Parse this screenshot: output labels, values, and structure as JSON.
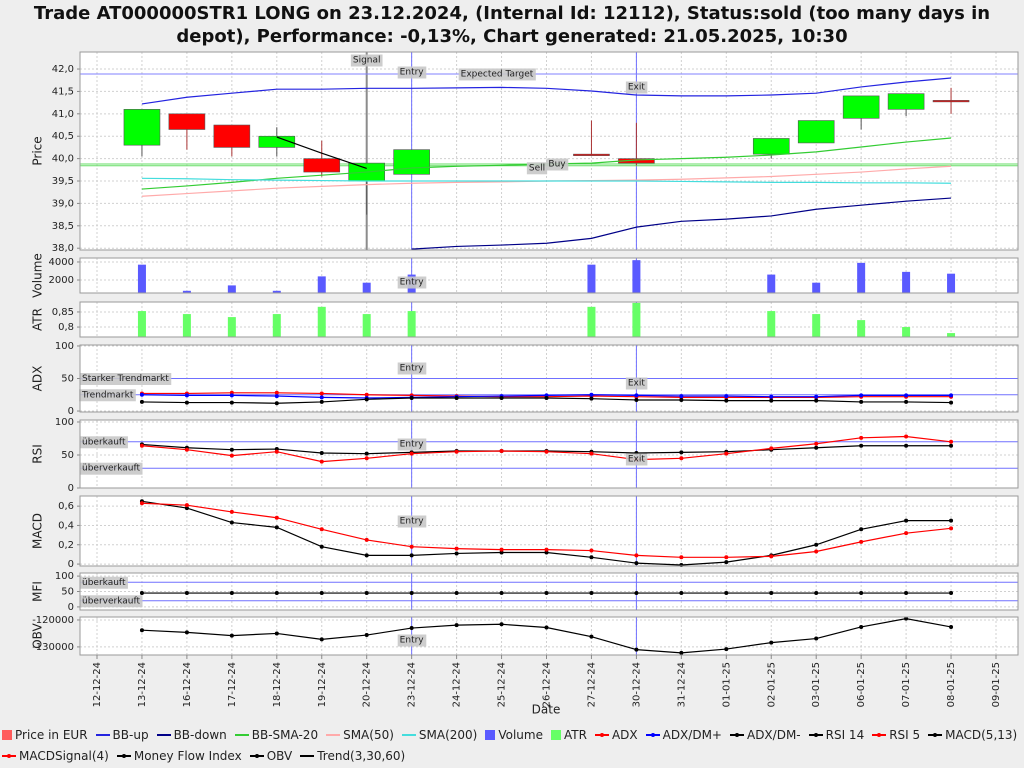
{
  "chart_data": {
    "type": "multi-panel",
    "title": "Trade AT000000STR1 LONG on 23.12.2024, (Internal Id: 12112), Status:sold (too many days in depot), Performance: -0,13%, Chart generated: 21.05.2025, 10:30",
    "x_label": "Date",
    "categories": [
      "12-12-24",
      "13-12-24",
      "16-12-24",
      "17-12-24",
      "18-12-24",
      "19-12-24",
      "20-12-24",
      "23-12-24",
      "24-12-24",
      "25-12-24",
      "26-12-24",
      "27-12-24",
      "30-12-24",
      "31-12-24",
      "01-01-25",
      "02-01-25",
      "03-01-25",
      "06-01-25",
      "07-01-25",
      "08-01-25",
      "09-01-25"
    ],
    "grid": true,
    "vlines": [
      {
        "label": "Signal",
        "category": "20-12-24",
        "color": "#8c8c8c"
      },
      {
        "label": "Entry",
        "category": "23-12-24",
        "color": "#7070ff"
      },
      {
        "label": "Exit",
        "category": "30-12-24",
        "color": "#7070ff"
      }
    ],
    "panels": [
      {
        "type": "candlestick",
        "y_label": "Price",
        "ylim": [
          37.96,
          42.38
        ],
        "yticks": [
          {
            "value": 38,
            "label": "38,0"
          },
          {
            "value": 38.5,
            "label": "38,5"
          },
          {
            "value": 39,
            "label": "39,0"
          },
          {
            "value": 39.5,
            "label": "39,5"
          },
          {
            "value": 40,
            "label": "40,0"
          },
          {
            "value": 40.5,
            "label": "40,5"
          },
          {
            "value": 41,
            "label": "41,0"
          },
          {
            "value": 41.5,
            "label": "41,5"
          },
          {
            "value": 42,
            "label": "42,0"
          }
        ],
        "hlines": [
          {
            "label": "Expected Target",
            "value": 41.89,
            "color": "#8080ff"
          },
          {
            "label": "Sell",
            "value": 39.84,
            "color": "#66dd66"
          },
          {
            "label": "Buy",
            "value": 39.88,
            "color": "#66dd66"
          }
        ],
        "series": [
          {
            "type": "candlestick",
            "name": "Price in EUR",
            "color": "#ff5c5c",
            "up_color": "#00ff00",
            "down_color": "#ff0000",
            "open": [
              null,
              40.3,
              41.0,
              40.75,
              40.25,
              40.0,
              39.5,
              39.65,
              null,
              null,
              null,
              40.1,
              40.0,
              null,
              null,
              40.1,
              40.35,
              40.9,
              41.1,
              41.3,
              null
            ],
            "high": [
              null,
              41.1,
              41.0,
              40.75,
              40.7,
              40.4,
              39.9,
              40.2,
              null,
              null,
              null,
              40.85,
              40.8,
              null,
              null,
              40.45,
              40.85,
              41.4,
              41.45,
              41.58,
              null
            ],
            "low": [
              null,
              40.05,
              40.2,
              40.05,
              40.05,
              39.6,
              38.75,
              39.65,
              null,
              null,
              null,
              40.1,
              39.85,
              null,
              null,
              40.0,
              40.35,
              40.65,
              40.95,
              41.0,
              null
            ],
            "close": [
              null,
              41.1,
              40.65,
              40.25,
              40.5,
              39.7,
              39.9,
              40.2,
              null,
              null,
              null,
              40.1,
              39.9,
              null,
              null,
              40.45,
              40.85,
              41.4,
              41.45,
              41.27,
              null
            ]
          },
          {
            "type": "line",
            "name": "BB-up",
            "color": "#2424e0",
            "values": [
              null,
              41.22,
              41.37,
              41.46,
              41.55,
              41.55,
              41.57,
              41.57,
              41.58,
              41.59,
              41.57,
              41.51,
              41.42,
              41.4,
              41.4,
              41.42,
              41.46,
              41.6,
              41.71,
              41.8,
              null
            ]
          },
          {
            "type": "line",
            "name": "BB-down",
            "color": "#000088",
            "values": [
              null,
              null,
              null,
              null,
              null,
              null,
              null,
              37.98,
              38.04,
              38.07,
              38.11,
              38.22,
              38.47,
              38.6,
              38.65,
              38.72,
              38.87,
              38.96,
              39.05,
              39.12,
              null
            ]
          },
          {
            "type": "line",
            "name": "BB-SMA-20",
            "color": "#33cc33",
            "values": [
              null,
              39.32,
              39.39,
              39.47,
              39.56,
              39.63,
              39.7,
              39.79,
              39.83,
              39.85,
              39.88,
              39.9,
              39.97,
              40.0,
              40.03,
              40.08,
              40.15,
              40.26,
              40.37,
              40.46,
              null
            ]
          },
          {
            "type": "line",
            "name": "SMA(50)",
            "color": "#ffaaaa",
            "values": [
              null,
              39.16,
              39.22,
              39.28,
              39.34,
              39.38,
              39.42,
              39.45,
              39.47,
              39.48,
              39.5,
              39.51,
              39.52,
              39.54,
              39.57,
              39.6,
              39.65,
              39.7,
              39.77,
              39.83,
              null
            ]
          },
          {
            "type": "line",
            "name": "SMA(200)",
            "color": "#44dddd",
            "values": [
              null,
              39.56,
              39.55,
              39.53,
              39.52,
              39.51,
              39.5,
              39.5,
              39.5,
              39.5,
              39.5,
              39.5,
              39.5,
              39.49,
              39.48,
              39.47,
              39.47,
              39.46,
              39.46,
              39.45,
              null
            ]
          }
        ],
        "trend": {
          "type": "line",
          "name": "Trend(3,30,60)",
          "color": "#000000",
          "values": [
            null,
            null,
            null,
            null,
            40.48,
            40.12,
            39.78,
            null,
            null,
            null,
            null,
            null,
            null,
            null,
            null,
            null,
            null,
            null,
            null,
            null,
            null
          ]
        }
      },
      {
        "type": "bar",
        "y_label": "Volume",
        "ylim": [
          556,
          4440
        ],
        "yticks": [
          2000,
          4000
        ],
        "series": [
          {
            "type": "bar",
            "name": "Volume",
            "color": "#5a5aff",
            "values": [
              null,
              3700,
              800,
              1400,
              800,
              2400,
              1700,
              2600,
              null,
              null,
              null,
              3700,
              4200,
              null,
              null,
              2600,
              1700,
              3900,
              2900,
              2700,
              null
            ]
          }
        ]
      },
      {
        "type": "bar",
        "y_label": "ATR",
        "ylim": [
          0.767,
          0.883
        ],
        "yticks": [
          {
            "value": 0.8,
            "label": "0,8"
          },
          {
            "value": 0.85,
            "label": "0,85"
          }
        ],
        "series": [
          {
            "type": "bar",
            "name": "ATR",
            "color": "#66ff66",
            "values": [
              null,
              0.853,
              0.843,
              0.833,
              0.843,
              0.867,
              0.843,
              0.853,
              null,
              null,
              null,
              0.867,
              0.88,
              null,
              null,
              0.853,
              0.843,
              0.823,
              0.8,
              0.78,
              null
            ]
          }
        ]
      },
      {
        "type": "line",
        "y_label": "ADX",
        "ylim": [
          -1.5,
          101.5
        ],
        "yticks": [
          0,
          50,
          100
        ],
        "hlines": [
          {
            "label": "Starker Trendmarkt",
            "value": 50,
            "color": "#7070ff"
          },
          {
            "label": "Trendmarkt",
            "value": 25,
            "color": "#7070ff"
          }
        ],
        "series": [
          {
            "type": "line",
            "name": "ADX",
            "color": "#ff0000",
            "markers": true,
            "values": [
              null,
              27,
              27,
              28,
              28,
              27,
              25,
              24,
              23,
              22,
              22,
              23,
              22,
              21,
              21,
              21,
              21,
              22,
              22,
              22,
              null
            ]
          },
          {
            "type": "line",
            "name": "ADX/DM+",
            "color": "#0000ff",
            "markers": true,
            "values": [
              null,
              25,
              24,
              24,
              23,
              21,
              20,
              21,
              22,
              23,
              24,
              25,
              24,
              23,
              23,
              22,
              22,
              24,
              24,
              24,
              null
            ]
          },
          {
            "type": "line",
            "name": "ADX/DM-",
            "color": "#000000",
            "markers": true,
            "values": [
              null,
              14,
              13,
              13,
              12,
              14,
              18,
              20,
              20,
              20,
              20,
              19,
              17,
              17,
              16,
              16,
              16,
              14,
              14,
              13,
              null
            ]
          }
        ]
      },
      {
        "type": "line",
        "y_label": "RSI",
        "ylim": [
          0,
          103
        ],
        "yticks": [
          0,
          50,
          100
        ],
        "hlines": [
          {
            "label": "überkauft",
            "value": 70,
            "color": "#7070ff"
          },
          {
            "label": "überverkauft",
            "value": 30,
            "color": "#7070ff"
          }
        ],
        "series": [
          {
            "type": "line",
            "name": "RSI 14",
            "color": "#000000",
            "markers": true,
            "values": [
              null,
              66,
              61,
              58,
              59,
              53,
              52,
              54,
              56,
              56,
              56,
              55,
              53,
              54,
              55,
              58,
              61,
              64,
              64,
              64,
              null
            ]
          },
          {
            "type": "line",
            "name": "RSI 5",
            "color": "#ff0000",
            "markers": true,
            "values": [
              null,
              64,
              58,
              49,
              55,
              40,
              45,
              52,
              55,
              56,
              55,
              52,
              43,
              45,
              52,
              60,
              67,
              76,
              78,
              70,
              null
            ]
          }
        ]
      },
      {
        "type": "line",
        "y_label": "MACD",
        "ylim": [
          -0.02,
          0.705
        ],
        "yticks": [
          0,
          {
            "value": 0.2,
            "label": "0,2"
          },
          {
            "value": 0.4,
            "label": "0,4"
          },
          {
            "value": 0.6,
            "label": "0,6"
          }
        ],
        "series": [
          {
            "type": "line",
            "name": "MACD(5,13)",
            "color": "#000000",
            "markers": true,
            "values": [
              null,
              0.65,
              0.58,
              0.43,
              0.38,
              0.18,
              0.09,
              0.09,
              0.11,
              0.12,
              0.12,
              0.07,
              0.01,
              -0.01,
              0.02,
              0.09,
              0.2,
              0.36,
              0.45,
              0.45,
              null
            ]
          },
          {
            "type": "line",
            "name": "MACDSignal(4)",
            "color": "#ff0000",
            "markers": true,
            "values": [
              null,
              0.63,
              0.61,
              0.54,
              0.48,
              0.36,
              0.25,
              0.18,
              0.16,
              0.15,
              0.15,
              0.14,
              0.09,
              0.07,
              0.07,
              0.08,
              0.13,
              0.23,
              0.32,
              0.37,
              null
            ]
          }
        ]
      },
      {
        "type": "line",
        "y_label": "MFI",
        "ylim": [
          -10,
          110
        ],
        "yticks": [
          0,
          50,
          100
        ],
        "hlines": [
          {
            "label": "überkauft",
            "value": 80,
            "color": "#7070ff"
          },
          {
            "label": "überverkauft",
            "value": 20,
            "color": "#7070ff"
          }
        ],
        "series": [
          {
            "type": "line",
            "name": "Money Flow Index",
            "color": "#000000",
            "markers": true,
            "values": [
              null,
              45,
              45,
              45,
              45,
              45,
              45,
              45,
              45,
              45,
              45,
              45,
              45,
              45,
              45,
              45,
              45,
              45,
              45,
              45,
              null
            ]
          }
        ]
      },
      {
        "type": "line",
        "y_label": "OBV",
        "ylim": [
          -133000,
          -118900
        ],
        "yticks": [
          -130000,
          -120000
        ],
        "series": [
          {
            "type": "line",
            "name": "OBV",
            "color": "#000000",
            "markers": true,
            "values": [
              null,
              -123800,
              -124600,
              -125800,
              -125000,
              -127200,
              -125600,
              -123000,
              -121900,
              -121600,
              -122800,
              -126200,
              -131000,
              -132200,
              -130800,
              -128400,
              -126900,
              -122600,
              -119500,
              -122600,
              null
            ]
          }
        ]
      }
    ]
  }
}
